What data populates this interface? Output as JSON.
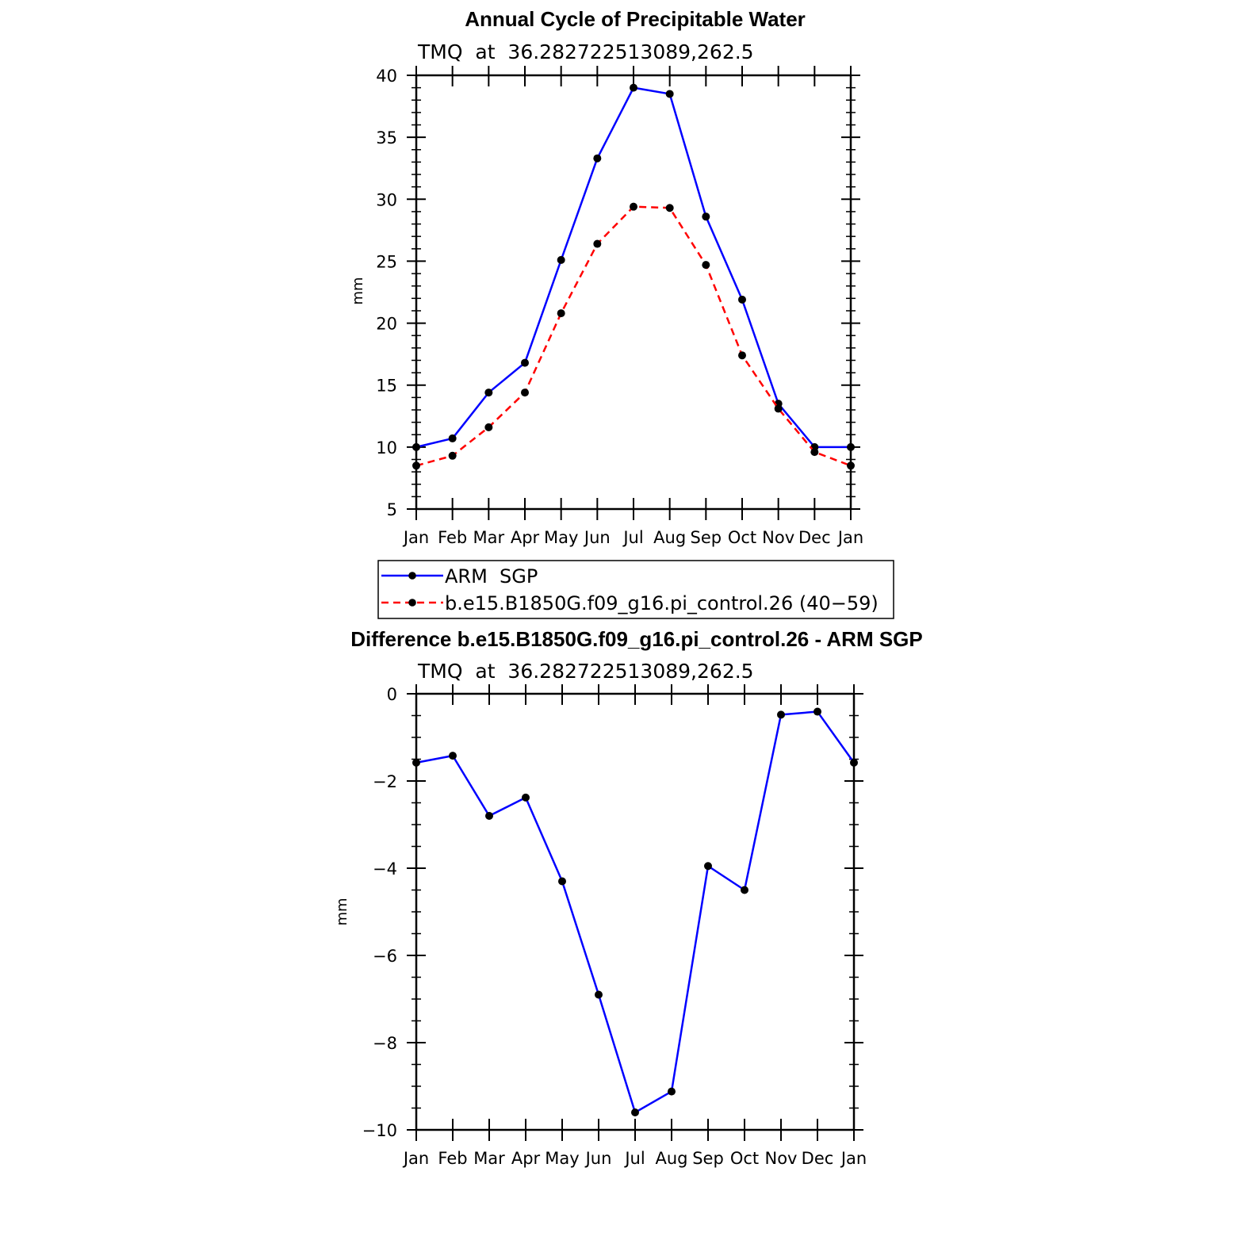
{
  "chart_data": [
    {
      "type": "line",
      "title": "Annual Cycle of Precipitable Water",
      "subtitle": "TMQ  at  36.282722513089,262.5",
      "xlabel": "",
      "ylabel": "mm",
      "ylim": [
        5,
        40
      ],
      "yticks": [
        5,
        10,
        15,
        20,
        25,
        30,
        35,
        40
      ],
      "categories": [
        "Jan",
        "Feb",
        "Mar",
        "Apr",
        "May",
        "Jun",
        "Jul",
        "Aug",
        "Sep",
        "Oct",
        "Nov",
        "Dec",
        "Jan"
      ],
      "series": [
        {
          "name": "ARM  SGP",
          "color": "#0000ff",
          "dash": "solid",
          "values": [
            10.0,
            10.7,
            14.4,
            16.8,
            25.1,
            33.3,
            39.0,
            38.5,
            28.6,
            21.9,
            13.5,
            10.0,
            10.0
          ]
        },
        {
          "name": "b.e15.B1850G.f09_g16.pi_control.26 (40−59)",
          "color": "#ff0000",
          "dash": "dashed",
          "values": [
            8.5,
            9.3,
            11.6,
            14.4,
            20.8,
            26.4,
            29.4,
            29.3,
            24.7,
            17.4,
            13.1,
            9.6,
            8.5
          ]
        }
      ],
      "legend": "below"
    },
    {
      "type": "line",
      "title": "Difference b.e15.B1850G.f09_g16.pi_control.26 - ARM SGP",
      "subtitle": "TMQ  at  36.282722513089,262.5",
      "xlabel": "",
      "ylabel": "mm",
      "ylim": [
        -10,
        0
      ],
      "yticks": [
        0,
        -2,
        -4,
        -6,
        -8,
        -10
      ],
      "ytick_labels": [
        "0",
        "−2",
        "−4",
        "−6",
        "−8",
        "−10"
      ],
      "categories": [
        "Jan",
        "Feb",
        "Mar",
        "Apr",
        "May",
        "Jun",
        "Jul",
        "Aug",
        "Sep",
        "Oct",
        "Nov",
        "Dec",
        "Jan"
      ],
      "series": [
        {
          "name": "Difference",
          "color": "#0000ff",
          "dash": "solid",
          "values": [
            -1.58,
            -1.42,
            -2.8,
            -2.38,
            -4.3,
            -6.9,
            -9.6,
            -9.12,
            -3.95,
            -4.5,
            -0.48,
            -0.41,
            -1.58
          ]
        }
      ]
    }
  ]
}
